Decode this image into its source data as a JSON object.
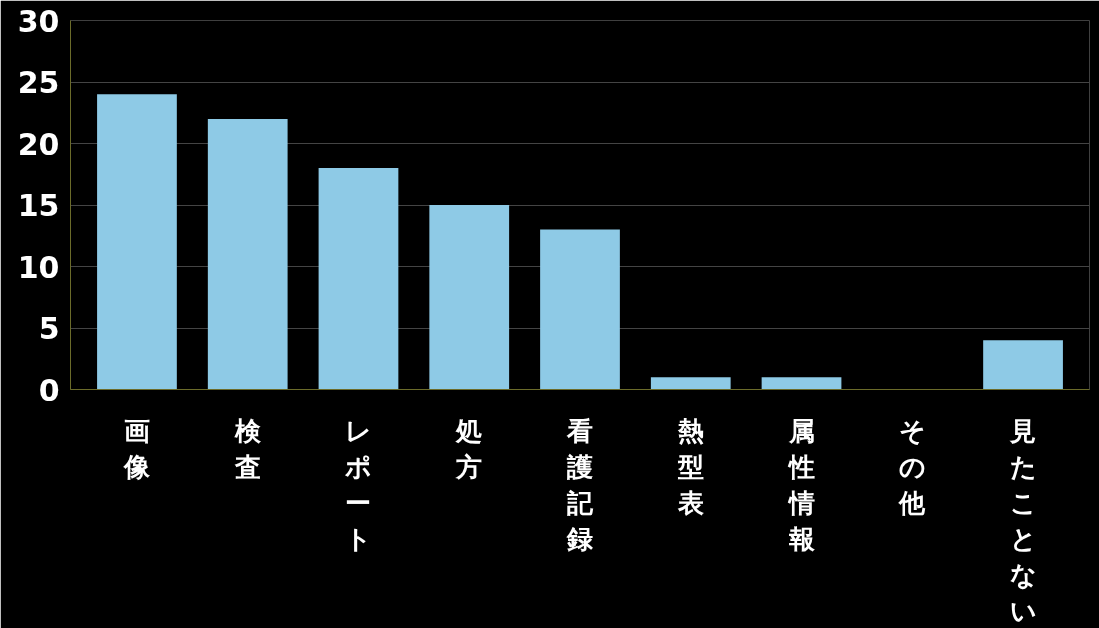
{
  "chart_data": {
    "type": "bar",
    "categories": [
      "画像",
      "検査",
      "レポート",
      "処方",
      "看護記録",
      "熱型表",
      "属性情報",
      "その他",
      "見たことない"
    ],
    "values": [
      24,
      22,
      18,
      15,
      13,
      1,
      1,
      0,
      4
    ],
    "color": "#8ecae6",
    "ylim": [
      0,
      30
    ],
    "yticks": [
      0,
      5,
      10,
      15,
      20,
      25,
      30
    ],
    "grid": "y"
  }
}
